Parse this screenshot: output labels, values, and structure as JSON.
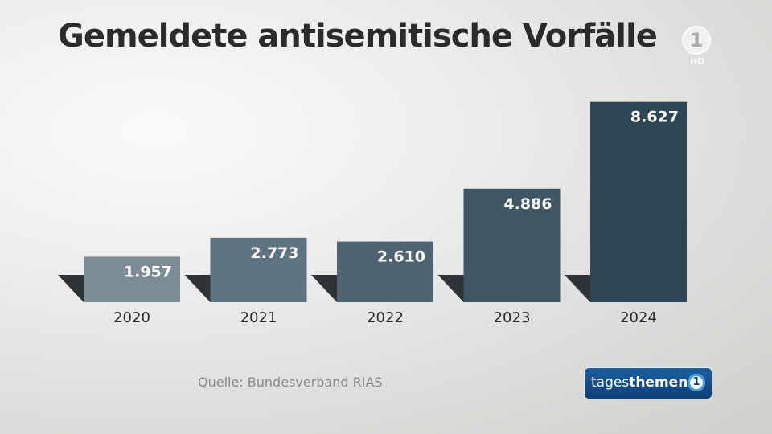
{
  "header": {
    "title": "Gemeldete antisemitische Vorfälle"
  },
  "logo": {
    "mark": "1",
    "hd": "HD"
  },
  "footer": {
    "source": "Quelle: Bundesverband RIAS",
    "brand_regular": "tages",
    "brand_bold": "themen",
    "brand_badge": "1"
  },
  "chart_data": {
    "type": "bar",
    "title": "Gemeldete antisemitische Vorfälle",
    "categories": [
      "2020",
      "2021",
      "2022",
      "2023",
      "2024"
    ],
    "values": [
      1957,
      2773,
      2610,
      4886,
      8627
    ],
    "value_labels": [
      "1.957",
      "2.773",
      "2.610",
      "4.886",
      "8.627"
    ],
    "colors": [
      "#7a8c96",
      "#5f7380",
      "#4f6370",
      "#3f5762",
      "#2d4754"
    ],
    "ylim": [
      0,
      9000
    ],
    "grid": false,
    "legend": "none"
  }
}
